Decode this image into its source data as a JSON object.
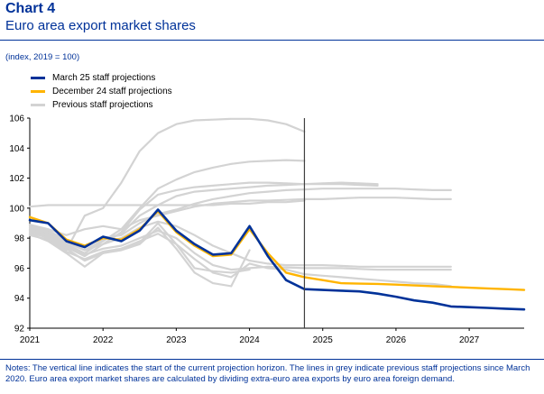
{
  "title": "Chart 4",
  "subtitle": "Euro area export market shares",
  "unit_note": "(index, 2019 = 100)",
  "notes": "Notes: The vertical line indicates the start of the current projection horizon. The lines in grey indicate previous staff projections since March 2020. Euro area export market shares are calculated by dividing extra-euro area exports by euro area foreign demand.",
  "colors": {
    "march25": "#003299",
    "dec24": "#FFB400",
    "previous": "#D3D3D3",
    "text_blue": "#003299"
  },
  "chart_data": {
    "type": "line",
    "title": "Euro area export market shares",
    "ylabel": "(index, 2019 = 100)",
    "xlim": [
      2021.0,
      2027.75
    ],
    "ylim": [
      92,
      106
    ],
    "x_ticks": [
      2021,
      2022,
      2023,
      2024,
      2025,
      2026,
      2027
    ],
    "y_ticks": [
      92,
      94,
      96,
      98,
      100,
      102,
      104,
      106
    ],
    "projection_start": 2024.75,
    "legend_position": "top-left",
    "legend": [
      {
        "label": "March 25 staff projections",
        "key": "march25"
      },
      {
        "label": "December 24 staff projections",
        "key": "dec24"
      },
      {
        "label": "Previous staff projections",
        "key": "previous"
      }
    ],
    "series": [
      {
        "name": "March 25 staff projections",
        "key": "march25",
        "x": [
          2021.0,
          2021.25,
          2021.5,
          2021.75,
          2022.0,
          2022.25,
          2022.5,
          2022.75,
          2023.0,
          2023.25,
          2023.5,
          2023.75,
          2024.0,
          2024.25,
          2024.5,
          2024.75,
          2025.0,
          2025.25,
          2025.5,
          2025.75,
          2026.0,
          2026.25,
          2026.5,
          2026.75,
          2027.0,
          2027.25,
          2027.5,
          2027.75
        ],
        "values": [
          99.2,
          99.0,
          97.8,
          97.4,
          98.1,
          97.8,
          98.5,
          99.9,
          98.5,
          97.6,
          96.9,
          97.0,
          98.8,
          96.8,
          95.2,
          94.6,
          94.55,
          94.5,
          94.45,
          94.3,
          94.1,
          93.85,
          93.7,
          93.45,
          93.4,
          93.35,
          93.3,
          93.25
        ]
      },
      {
        "name": "December 24 staff projections",
        "key": "dec24",
        "x": [
          2021.0,
          2021.25,
          2021.5,
          2021.75,
          2022.0,
          2022.25,
          2022.5,
          2022.75,
          2023.0,
          2023.25,
          2023.5,
          2023.75,
          2024.0,
          2024.25,
          2024.5,
          2024.75,
          2025.0,
          2025.25,
          2025.5,
          2025.75,
          2026.0,
          2026.25,
          2026.5,
          2026.75,
          2027.0,
          2027.25,
          2027.5,
          2027.75
        ],
        "values": [
          99.4,
          99.0,
          97.9,
          97.5,
          98.0,
          97.9,
          98.6,
          99.8,
          98.4,
          97.5,
          96.8,
          96.9,
          98.6,
          97.0,
          95.7,
          95.4,
          95.2,
          95.0,
          94.97,
          94.95,
          94.9,
          94.85,
          94.8,
          94.75,
          94.7,
          94.65,
          94.6,
          94.55
        ]
      },
      {
        "key": "previous",
        "x": [
          2021.0,
          2021.25,
          2021.5,
          2021.75,
          2022.0,
          2022.25,
          2022.5,
          2022.75,
          2023.0,
          2023.25,
          2023.5,
          2023.75,
          2024.0,
          2024.25,
          2024.5,
          2024.75
        ],
        "values": [
          100.1,
          100.2,
          100.2,
          100.2,
          100.2,
          100.2,
          100.2,
          100.2,
          100.2,
          100.2,
          100.2,
          100.3,
          100.3,
          100.4,
          100.4,
          100.5
        ]
      },
      {
        "key": "previous",
        "x": [
          2021.0,
          2021.25,
          2021.5,
          2021.75,
          2022.0,
          2022.25,
          2022.5,
          2022.75,
          2023.0,
          2023.25,
          2023.5,
          2023.75,
          2024.0,
          2024.25,
          2024.5,
          2024.75
        ],
        "values": [
          98.6,
          98.0,
          97.2,
          99.5,
          100.0,
          101.7,
          103.8,
          105.0,
          105.6,
          105.85,
          105.9,
          105.95,
          105.95,
          105.85,
          105.6,
          105.1
        ]
      },
      {
        "key": "previous",
        "x": [
          2021.0,
          2021.25,
          2021.5,
          2021.75,
          2022.0,
          2022.25,
          2022.5,
          2022.75,
          2023.0,
          2023.25,
          2023.5,
          2023.75,
          2024.0,
          2024.25,
          2024.5,
          2024.75
        ],
        "values": [
          98.5,
          98.3,
          97.6,
          97.0,
          97.8,
          98.6,
          100.0,
          101.3,
          101.9,
          102.4,
          102.7,
          102.95,
          103.1,
          103.15,
          103.2,
          103.15
        ]
      },
      {
        "key": "previous",
        "x": [
          2021.0,
          2021.25,
          2021.5,
          2021.75,
          2022.0,
          2022.25,
          2022.5,
          2022.75,
          2023.0,
          2023.25,
          2023.5,
          2023.75,
          2024.0,
          2024.25,
          2024.5,
          2024.75,
          2025.0,
          2025.25,
          2025.5,
          2025.75
        ],
        "values": [
          98.3,
          98.1,
          97.4,
          96.8,
          97.6,
          98.4,
          99.9,
          100.9,
          101.2,
          101.4,
          101.5,
          101.6,
          101.7,
          101.7,
          101.65,
          101.6,
          101.6,
          101.6,
          101.55,
          101.5
        ]
      },
      {
        "key": "previous",
        "x": [
          2021.0,
          2021.25,
          2021.5,
          2021.75,
          2022.0,
          2022.25,
          2022.5,
          2022.75,
          2023.0,
          2023.25,
          2023.5,
          2023.75,
          2024.0,
          2024.25,
          2024.5,
          2024.75,
          2025.0,
          2025.25,
          2025.5,
          2025.75
        ],
        "values": [
          98.6,
          98.4,
          97.7,
          97.2,
          97.9,
          98.3,
          99.5,
          100.2,
          100.8,
          101.1,
          101.2,
          101.3,
          101.4,
          101.5,
          101.55,
          101.6,
          101.65,
          101.7,
          101.65,
          101.6
        ]
      },
      {
        "key": "previous",
        "x": [
          2021.0,
          2021.25,
          2021.5,
          2021.75,
          2022.0,
          2022.25,
          2022.5,
          2022.75,
          2023.0,
          2023.25,
          2023.5,
          2023.75,
          2024.0,
          2024.25,
          2024.5,
          2024.75,
          2025.0,
          2025.25,
          2025.5,
          2025.75,
          2026.0,
          2026.25,
          2026.5,
          2026.75
        ],
        "values": [
          98.8,
          98.5,
          97.9,
          97.5,
          98.0,
          98.2,
          99.0,
          99.6,
          99.9,
          100.3,
          100.6,
          100.8,
          101.0,
          101.1,
          101.2,
          101.25,
          101.3,
          101.3,
          101.3,
          101.3,
          101.3,
          101.25,
          101.2,
          101.2
        ]
      },
      {
        "key": "previous",
        "x": [
          2021.0,
          2021.25,
          2021.5,
          2021.75,
          2022.0,
          2022.25,
          2022.5,
          2022.75,
          2023.0,
          2023.25,
          2023.5,
          2023.75,
          2024.0,
          2024.25,
          2024.5,
          2024.75,
          2025.0,
          2025.25,
          2025.5,
          2025.75,
          2026.0,
          2026.25,
          2026.5,
          2026.75
        ],
        "values": [
          98.9,
          98.6,
          98.2,
          98.6,
          98.8,
          98.6,
          99.2,
          99.5,
          99.8,
          100.1,
          100.3,
          100.4,
          100.5,
          100.5,
          100.55,
          100.6,
          100.6,
          100.65,
          100.7,
          100.7,
          100.7,
          100.65,
          100.6,
          100.6
        ]
      },
      {
        "key": "previous",
        "x": [
          2021.0,
          2021.25,
          2021.5,
          2021.75,
          2022.0,
          2022.25,
          2022.5,
          2022.75,
          2023.0,
          2023.25,
          2023.5,
          2023.75,
          2024.0,
          2024.25,
          2024.5,
          2024.75,
          2025.0,
          2025.25,
          2025.5,
          2025.75,
          2026.0,
          2026.25,
          2026.5,
          2026.75
        ],
        "values": [
          98.7,
          98.4,
          97.8,
          97.2,
          97.6,
          98.0,
          98.7,
          99.1,
          98.8,
          98.2,
          97.5,
          97.0,
          96.5,
          96.3,
          96.2,
          96.2,
          96.2,
          96.15,
          96.1,
          96.1,
          96.1,
          96.1,
          96.1,
          96.1
        ]
      },
      {
        "key": "previous",
        "x": [
          2021.0,
          2021.25,
          2021.5,
          2021.75,
          2022.0,
          2022.25,
          2022.5,
          2022.75,
          2023.0,
          2023.25,
          2023.5,
          2023.75,
          2024.0,
          2024.25,
          2024.5,
          2024.75,
          2025.0,
          2025.25,
          2025.5,
          2025.75,
          2026.0,
          2026.25,
          2026.5,
          2026.75
        ],
        "values": [
          98.5,
          98.2,
          97.5,
          96.9,
          97.3,
          97.5,
          98.0,
          98.5,
          98.0,
          97.0,
          96.2,
          95.9,
          96.0,
          96.1,
          96.05,
          96.0,
          96.0,
          96.0,
          95.95,
          95.9,
          95.9,
          95.9,
          95.9,
          95.9
        ]
      },
      {
        "key": "previous",
        "x": [
          2021.0,
          2021.25,
          2021.5,
          2021.75,
          2022.0,
          2022.25,
          2022.5,
          2022.75,
          2023.0,
          2023.25,
          2023.5,
          2023.75,
          2024.0,
          2024.25,
          2024.5,
          2024.75,
          2025.0,
          2025.25,
          2025.5,
          2025.75,
          2026.0,
          2026.25,
          2026.5,
          2026.75
        ],
        "values": [
          98.4,
          98.0,
          97.3,
          96.5,
          97.0,
          97.3,
          97.8,
          98.3,
          97.6,
          96.6,
          95.7,
          95.4,
          96.3,
          96.0,
          95.9,
          95.6,
          95.5,
          95.4,
          95.3,
          95.2,
          95.1,
          95.0,
          94.95,
          94.8
        ]
      },
      {
        "key": "previous",
        "x": [
          2021.0,
          2021.25,
          2021.5,
          2021.75,
          2022.0,
          2022.25,
          2022.5,
          2022.75,
          2023.0,
          2023.25,
          2023.5,
          2023.75,
          2024.0
        ],
        "values": [
          98.3,
          97.8,
          97.0,
          96.1,
          97.0,
          97.2,
          97.6,
          98.7,
          97.3,
          95.7,
          95.0,
          94.8,
          97.2
        ]
      },
      {
        "key": "previous",
        "x": [
          2021.0,
          2021.25,
          2021.5,
          2021.75,
          2022.0,
          2022.25,
          2022.5,
          2022.75,
          2023.0,
          2023.25,
          2023.5,
          2023.75,
          2024.0
        ],
        "values": [
          98.2,
          97.9,
          97.1,
          96.6,
          97.1,
          97.3,
          97.7,
          99.0,
          97.6,
          96.0,
          95.8,
          95.7,
          95.9
        ]
      }
    ]
  }
}
